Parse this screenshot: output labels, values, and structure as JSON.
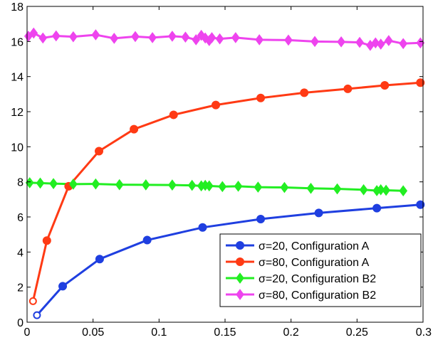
{
  "chart_data": {
    "type": "line",
    "title": "",
    "xlabel": "",
    "ylabel": "",
    "xlim": [
      0,
      0.3
    ],
    "ylim": [
      0,
      18
    ],
    "xticks": [
      0,
      0.05,
      0.1,
      0.15,
      0.2,
      0.25,
      0.3
    ],
    "xtick_labels": [
      "0",
      "0.05",
      "0.1",
      "0.15",
      "0.2",
      "0.25",
      "0.3"
    ],
    "yticks": [
      0,
      2,
      4,
      6,
      8,
      10,
      12,
      14,
      16,
      18
    ],
    "ytick_labels": [
      "0",
      "2",
      "4",
      "6",
      "8",
      "10",
      "12",
      "14",
      "16",
      "18"
    ],
    "grid": false,
    "legend_position": "bottom-right",
    "series": [
      {
        "name": "σ=20,  Configuration A",
        "color": "#1f3fe0",
        "marker": "circle",
        "x": [
          0.0075,
          0.027,
          0.055,
          0.091,
          0.133,
          0.177,
          0.221,
          0.265,
          0.298
        ],
        "y": [
          0.4,
          2.05,
          3.6,
          4.68,
          5.4,
          5.88,
          6.23,
          6.5,
          6.7
        ]
      },
      {
        "name": "σ=80,  Configuration A",
        "color": "#ff3a14",
        "marker": "circle",
        "x": [
          0.0045,
          0.015,
          0.0315,
          0.0545,
          0.081,
          0.111,
          0.143,
          0.177,
          0.21,
          0.243,
          0.271,
          0.298
        ],
        "y": [
          1.2,
          4.65,
          7.75,
          9.75,
          11.0,
          11.82,
          12.38,
          12.78,
          13.08,
          13.3,
          13.5,
          13.65
        ]
      },
      {
        "name": "σ=20,  Configuration B2",
        "color": "#22ee22",
        "marker": "diamond",
        "x": [
          0.002,
          0.01,
          0.02,
          0.035,
          0.052,
          0.07,
          0.09,
          0.11,
          0.125,
          0.132,
          0.135,
          0.138,
          0.148,
          0.16,
          0.175,
          0.195,
          0.215,
          0.235,
          0.255,
          0.265,
          0.268,
          0.272,
          0.285
        ],
        "y": [
          7.95,
          7.93,
          7.9,
          7.87,
          7.88,
          7.84,
          7.83,
          7.82,
          7.8,
          7.77,
          7.8,
          7.77,
          7.73,
          7.75,
          7.7,
          7.68,
          7.63,
          7.6,
          7.55,
          7.5,
          7.55,
          7.52,
          7.49
        ]
      },
      {
        "name": "σ=80,  Configuration B2",
        "color": "#ee44ee",
        "marker": "diamond",
        "x": [
          0.001,
          0.005,
          0.012,
          0.022,
          0.035,
          0.052,
          0.066,
          0.082,
          0.095,
          0.11,
          0.12,
          0.128,
          0.132,
          0.135,
          0.138,
          0.14,
          0.146,
          0.158,
          0.176,
          0.198,
          0.218,
          0.238,
          0.252,
          0.26,
          0.264,
          0.268,
          0.274,
          0.285,
          0.298
        ],
        "y": [
          16.3,
          16.48,
          16.2,
          16.32,
          16.27,
          16.38,
          16.18,
          16.28,
          16.22,
          16.3,
          16.25,
          16.1,
          16.35,
          16.2,
          16.05,
          16.22,
          16.15,
          16.22,
          16.1,
          16.08,
          16.0,
          15.98,
          15.95,
          15.78,
          15.92,
          15.85,
          16.05,
          15.88,
          15.92
        ]
      }
    ]
  }
}
